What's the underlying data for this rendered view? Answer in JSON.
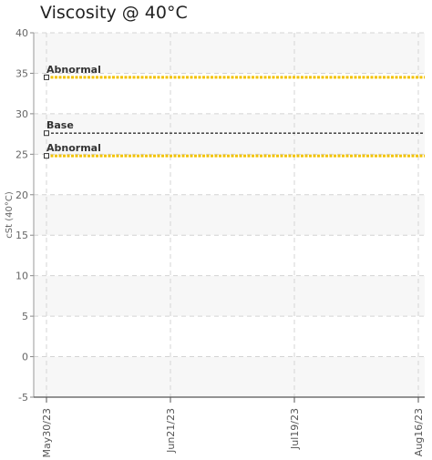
{
  "chart_data": {
    "type": "line",
    "title": "Viscosity @ 40°C",
    "ylabel": "cSt (40°C)",
    "xlabel": "",
    "ylim": [
      -5,
      40
    ],
    "yticks": [
      -5,
      0,
      5,
      10,
      15,
      20,
      25,
      30,
      35,
      40
    ],
    "x_ticks": [
      "May30/23",
      "Jun21/23",
      "Jul19/23",
      "Aug16/23"
    ],
    "grid": true,
    "series": [
      {
        "name": "Abnormal",
        "start": "May30/23",
        "end": "Aug16/23",
        "value": 34.5,
        "color": "#f2c200",
        "style": "dotted"
      },
      {
        "name": "Base",
        "start": "May30/23",
        "end": "Aug16/23",
        "value": 27.6,
        "color": "#333333",
        "style": "dashed"
      },
      {
        "name": "Abnormal",
        "start": "May30/23",
        "end": "Aug16/23",
        "value": 24.8,
        "color": "#f2c200",
        "style": "dotted"
      }
    ]
  }
}
